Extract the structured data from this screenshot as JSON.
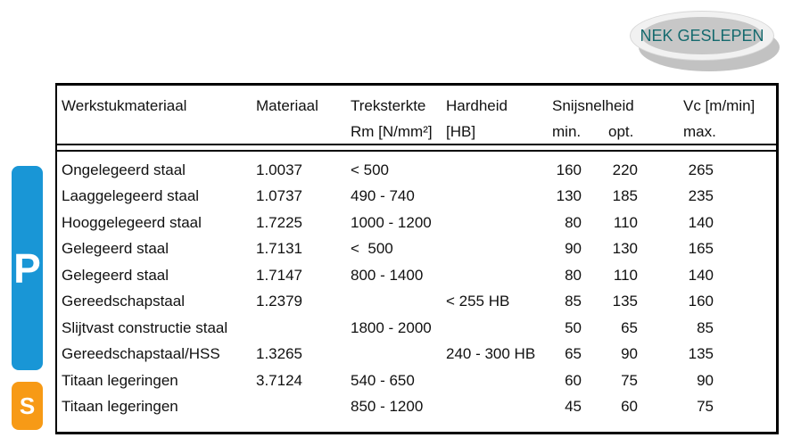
{
  "stamp": {
    "label": "NEK GESLEPEN",
    "text_color": "#156a6e"
  },
  "side_tabs": {
    "p": {
      "label": "P",
      "color": "#1996d6"
    },
    "s": {
      "label": "S",
      "color": "#f79a16"
    }
  },
  "table": {
    "headers": {
      "workpiece_material": "Werkstukmateriaal",
      "material": "Materiaal",
      "tensile": "Treksterkte",
      "tensile_unit": "Rm [N/mm²]",
      "hardness": "Hardheid",
      "hardness_unit": "[HB]",
      "cutting_speed": "Snijsnelheid",
      "speed_min": "min.",
      "speed_opt": "opt.",
      "vc": "Vc [m/min]",
      "speed_max": "max."
    },
    "rows": [
      [
        "Ongelegeerd staal",
        "1.0037",
        "< 500",
        "",
        "160",
        "220",
        "265"
      ],
      [
        "Laaggelegeerd staal",
        "1.0737",
        "490 - 740",
        "",
        "130",
        "185",
        "235"
      ],
      [
        "Hooggelegeerd staal",
        "1.7225",
        "1000 - 1200",
        "",
        "80",
        "110",
        "140"
      ],
      [
        "Gelegeerd staal",
        "1.7131",
        "<  500",
        "",
        "90",
        "130",
        "165"
      ],
      [
        "Gelegeerd staal",
        "1.7147",
        "800 - 1400",
        "",
        "80",
        "110",
        "140"
      ],
      [
        "Gereedschapstaal",
        "1.2379",
        "",
        "< 255 HB",
        "85",
        "135",
        "160"
      ],
      [
        "Slijtvast constructie staal",
        "",
        "1800 - 2000",
        "",
        "50",
        "65",
        "85"
      ],
      [
        "Gereedschapstaal/HSS",
        "1.3265",
        "",
        "240 - 300 HB",
        "65",
        "90",
        "135"
      ],
      [
        "Titaan legeringen",
        "3.7124",
        "540 - 650",
        "",
        "60",
        "75",
        "90"
      ],
      [
        "Titaan legeringen",
        "",
        "850 - 1200",
        "",
        "45",
        "60",
        "75"
      ]
    ]
  }
}
